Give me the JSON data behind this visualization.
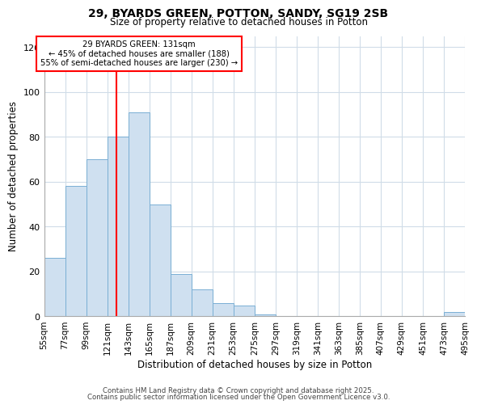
{
  "title1": "29, BYARDS GREEN, POTTON, SANDY, SG19 2SB",
  "title2": "Size of property relative to detached houses in Potton",
  "xlabel": "Distribution of detached houses by size in Potton",
  "ylabel": "Number of detached properties",
  "bar_color": "#cfe0f0",
  "bar_edge_color": "#7aafd4",
  "bin_edges": [
    55,
    77,
    99,
    121,
    143,
    165,
    187,
    209,
    231,
    253,
    275,
    297,
    319,
    341,
    363,
    385,
    407,
    429,
    451,
    473,
    495
  ],
  "bar_values": [
    26,
    58,
    70,
    80,
    91,
    50,
    19,
    12,
    6,
    5,
    1,
    0,
    0,
    0,
    0,
    0,
    0,
    0,
    0,
    2
  ],
  "tick_labels": [
    "55sqm",
    "77sqm",
    "99sqm",
    "121sqm",
    "143sqm",
    "165sqm",
    "187sqm",
    "209sqm",
    "231sqm",
    "253sqm",
    "275sqm",
    "297sqm",
    "319sqm",
    "341sqm",
    "363sqm",
    "385sqm",
    "407sqm",
    "429sqm",
    "451sqm",
    "473sqm",
    "495sqm"
  ],
  "ylim": [
    0,
    125
  ],
  "yticks": [
    0,
    20,
    40,
    60,
    80,
    100,
    120
  ],
  "red_line_x": 131,
  "annotation_line1": "29 BYARDS GREEN: 131sqm",
  "annotation_line2": "← 45% of detached houses are smaller (188)",
  "annotation_line3": "55% of semi-detached houses are larger (230) →",
  "annotation_box_color": "white",
  "annotation_box_edge_color": "red",
  "footer1": "Contains HM Land Registry data © Crown copyright and database right 2025.",
  "footer2": "Contains public sector information licensed under the Open Government Licence v3.0.",
  "background_color": "#ffffff",
  "grid_color": "#d0dce8"
}
